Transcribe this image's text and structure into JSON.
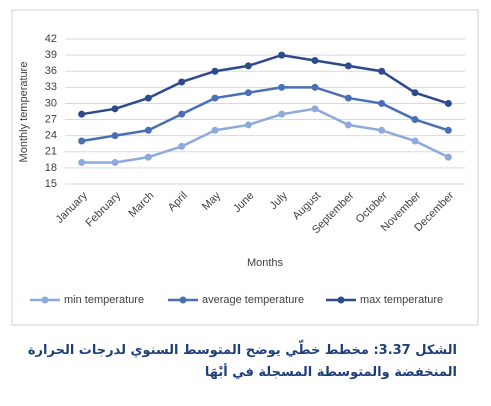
{
  "chart_data": {
    "type": "line",
    "y_label": "Monthly temperature",
    "x_label": "Months",
    "categories": [
      "January",
      "February",
      "March",
      "April",
      "May",
      "June",
      "July",
      "August",
      "September",
      "October",
      "November",
      "December"
    ],
    "series": [
      {
        "name": "min temperature",
        "color": "#8ea9db",
        "values": [
          19,
          19,
          20,
          22,
          25,
          26,
          28,
          29,
          26,
          25,
          23,
          20
        ]
      },
      {
        "name": "average temperature",
        "color": "#4a6fb5",
        "values": [
          23,
          24,
          25,
          28,
          31,
          32,
          33,
          33,
          31,
          30,
          27,
          25
        ]
      },
      {
        "name": "max temperature",
        "color": "#2e4a8c",
        "values": [
          28,
          29,
          31,
          34,
          36,
          37,
          39,
          38,
          37,
          36,
          32,
          30
        ]
      }
    ],
    "ylim": [
      15,
      42
    ],
    "yticks": [
      15,
      18,
      21,
      24,
      27,
      30,
      33,
      36,
      39,
      42
    ],
    "grid": true,
    "legend": "bottom"
  },
  "caption": [
    "الشكل 3.37: مخطط خطّي يوضح المتوسط السنوي لدرجات الحرارة",
    "المنخفضة والمتوسطة المسجلة في أبْهَا"
  ]
}
